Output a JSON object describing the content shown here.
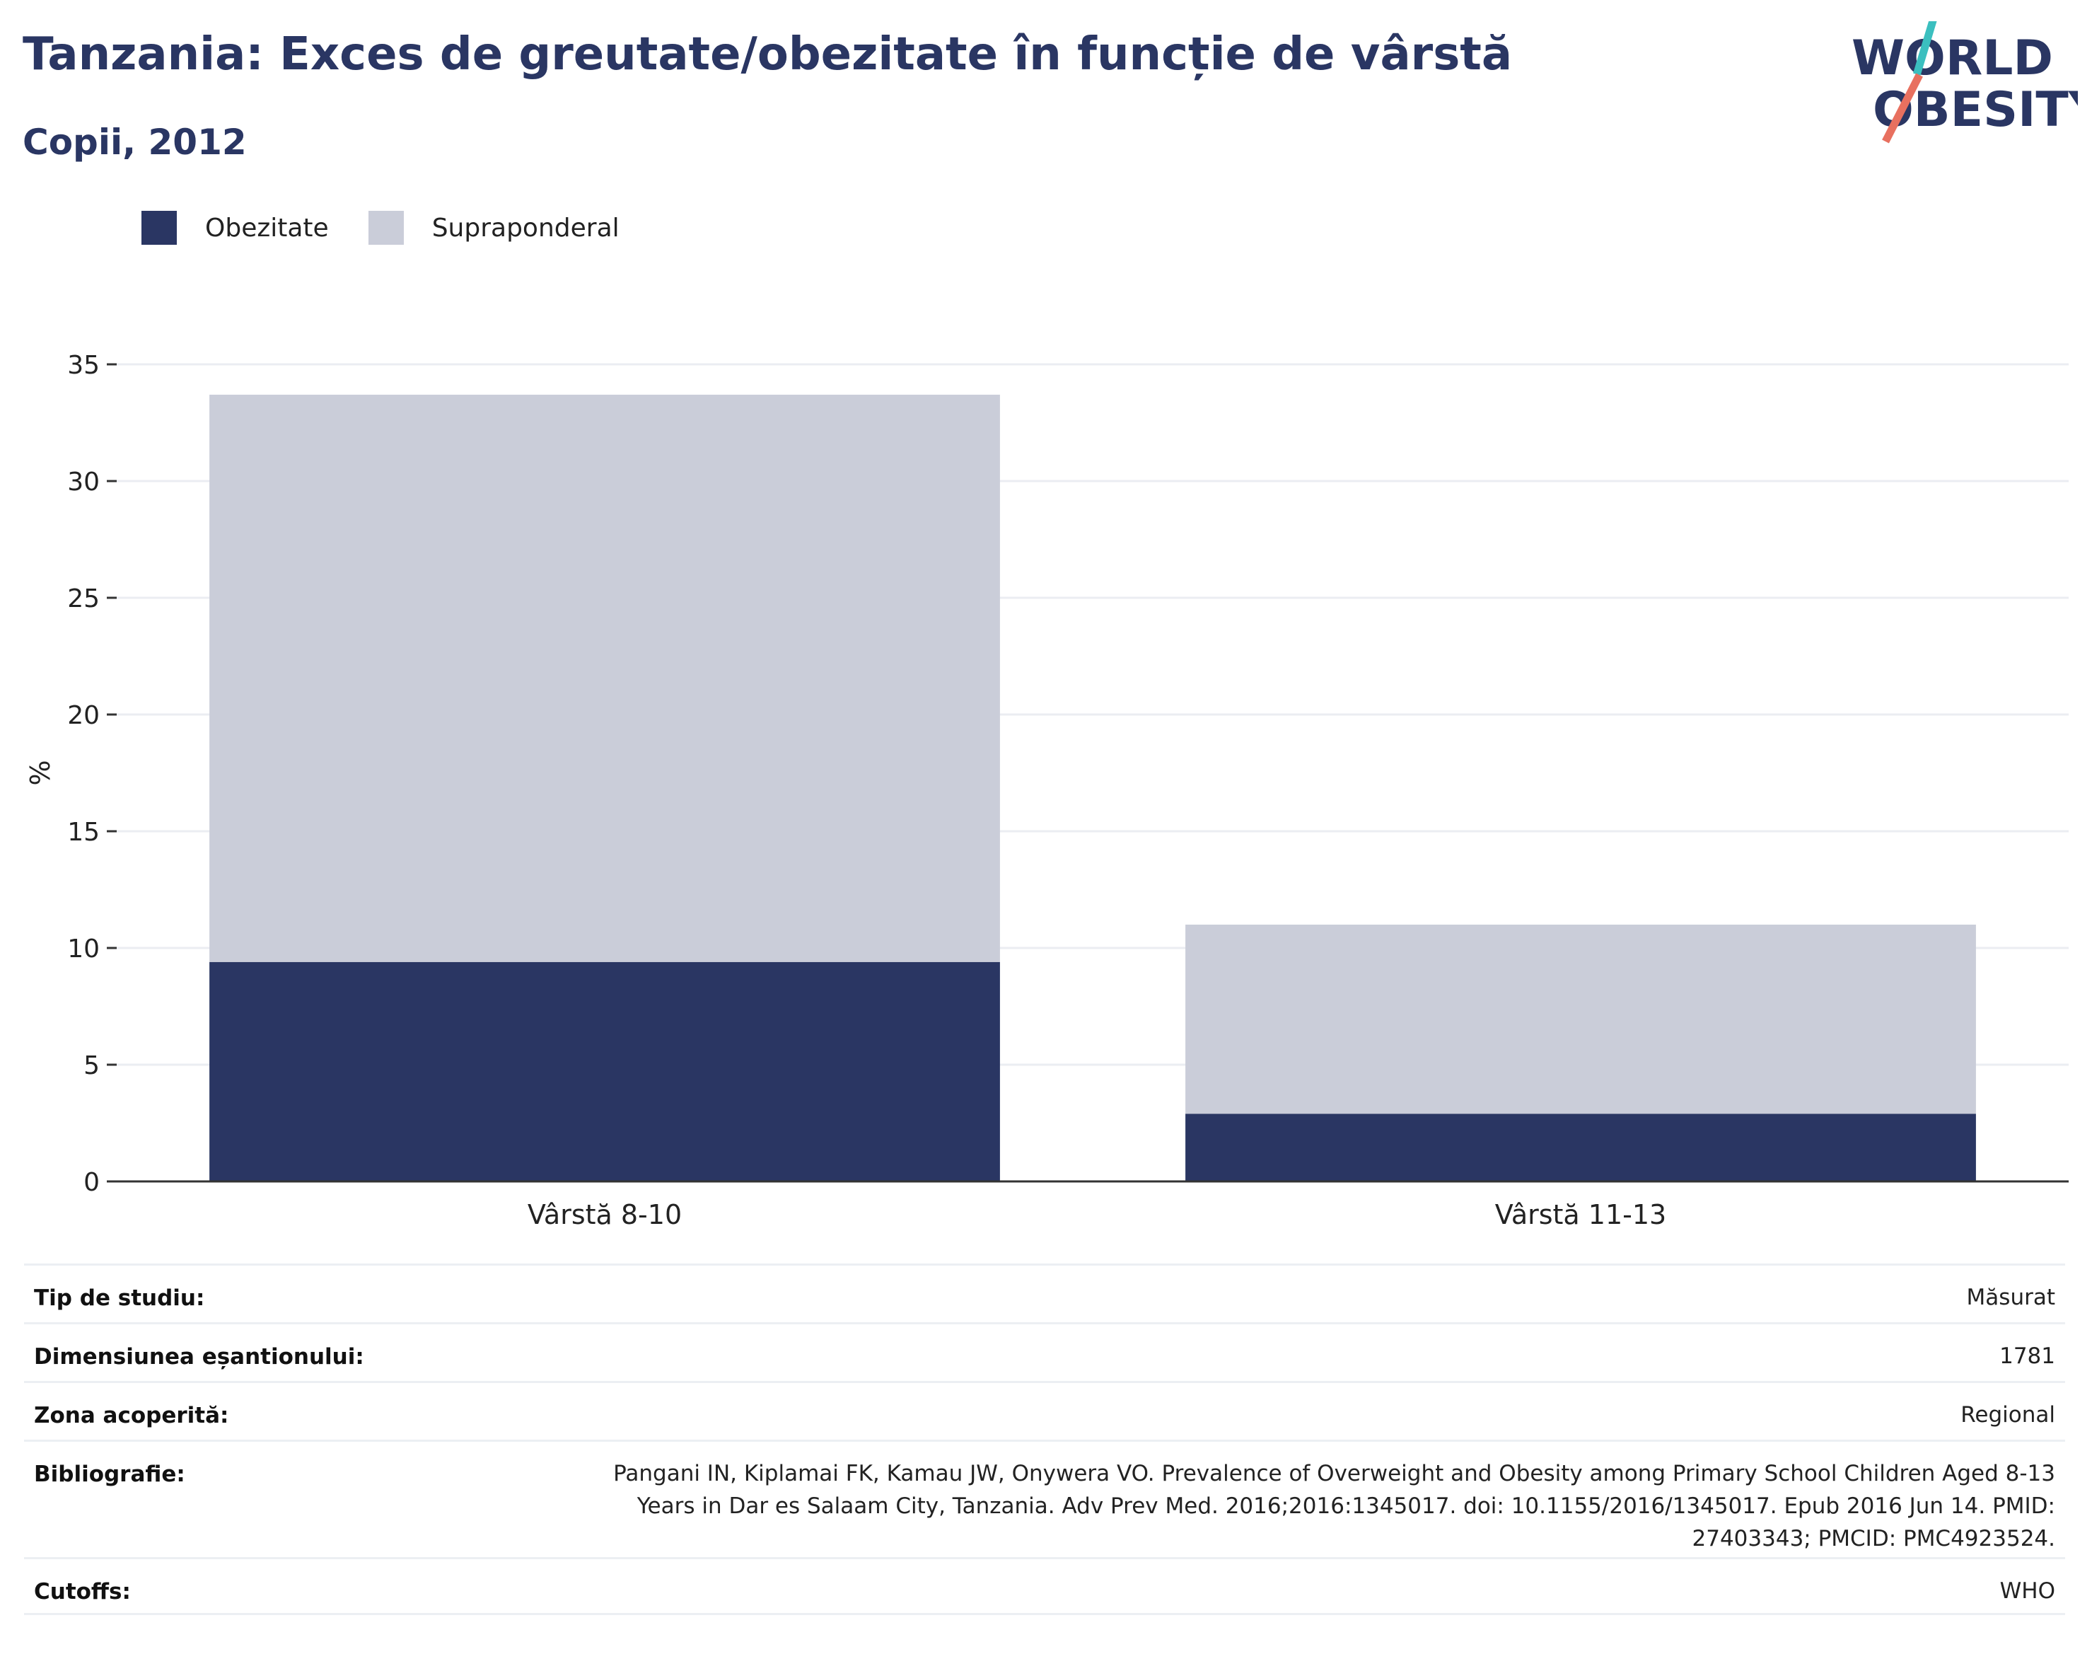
{
  "header": {
    "title": "Tanzania: Exces de greutate/obezitate în funcție de vârstă",
    "subtitle": "Copii, 2012"
  },
  "logo": {
    "line1": "WORLD",
    "line2": "OBESITY",
    "accent_colors": [
      "#3bbfbf",
      "#e8705f"
    ]
  },
  "colors": {
    "obezitate": "#2a3663",
    "supraponderal": "#cacdd9",
    "gridline": "#ebedf2",
    "axis": "#333333"
  },
  "chart_data": {
    "type": "bar",
    "stacked": true,
    "categories": [
      "Vârstă 8-10",
      "Vârstă 11-13"
    ],
    "series": [
      {
        "name": "Obezitate",
        "values": [
          9.4,
          2.9
        ],
        "color": "#2a3663"
      },
      {
        "name": "Supraponderal",
        "values": [
          24.3,
          8.1
        ],
        "color": "#cacdd9"
      }
    ],
    "ylabel": "%",
    "ylim": [
      0,
      35
    ],
    "yticks": [
      0,
      5,
      10,
      15,
      20,
      25,
      30,
      35
    ],
    "grid": true,
    "legend": "top-left"
  },
  "info_table": {
    "rows": [
      {
        "label": "Tip de studiu:",
        "value": "Măsurat"
      },
      {
        "label": "Dimensiunea eșantionului:",
        "value": "1781"
      },
      {
        "label": "Zona acoperită:",
        "value": "Regional"
      },
      {
        "label": "Bibliografie:",
        "value": "Pangani IN, Kiplamai FK, Kamau JW, Onywera VO. Prevalence of Overweight and Obesity among Primary School Children Aged 8-13 Years in Dar es Salaam City, Tanzania. Adv Prev Med. 2016;2016:1345017. doi: 10.1155/2016/1345017. Epub 2016 Jun 14. PMID: 27403343; PMCID: PMC4923524."
      },
      {
        "label": "Cutoffs:",
        "value": "WHO"
      }
    ]
  }
}
